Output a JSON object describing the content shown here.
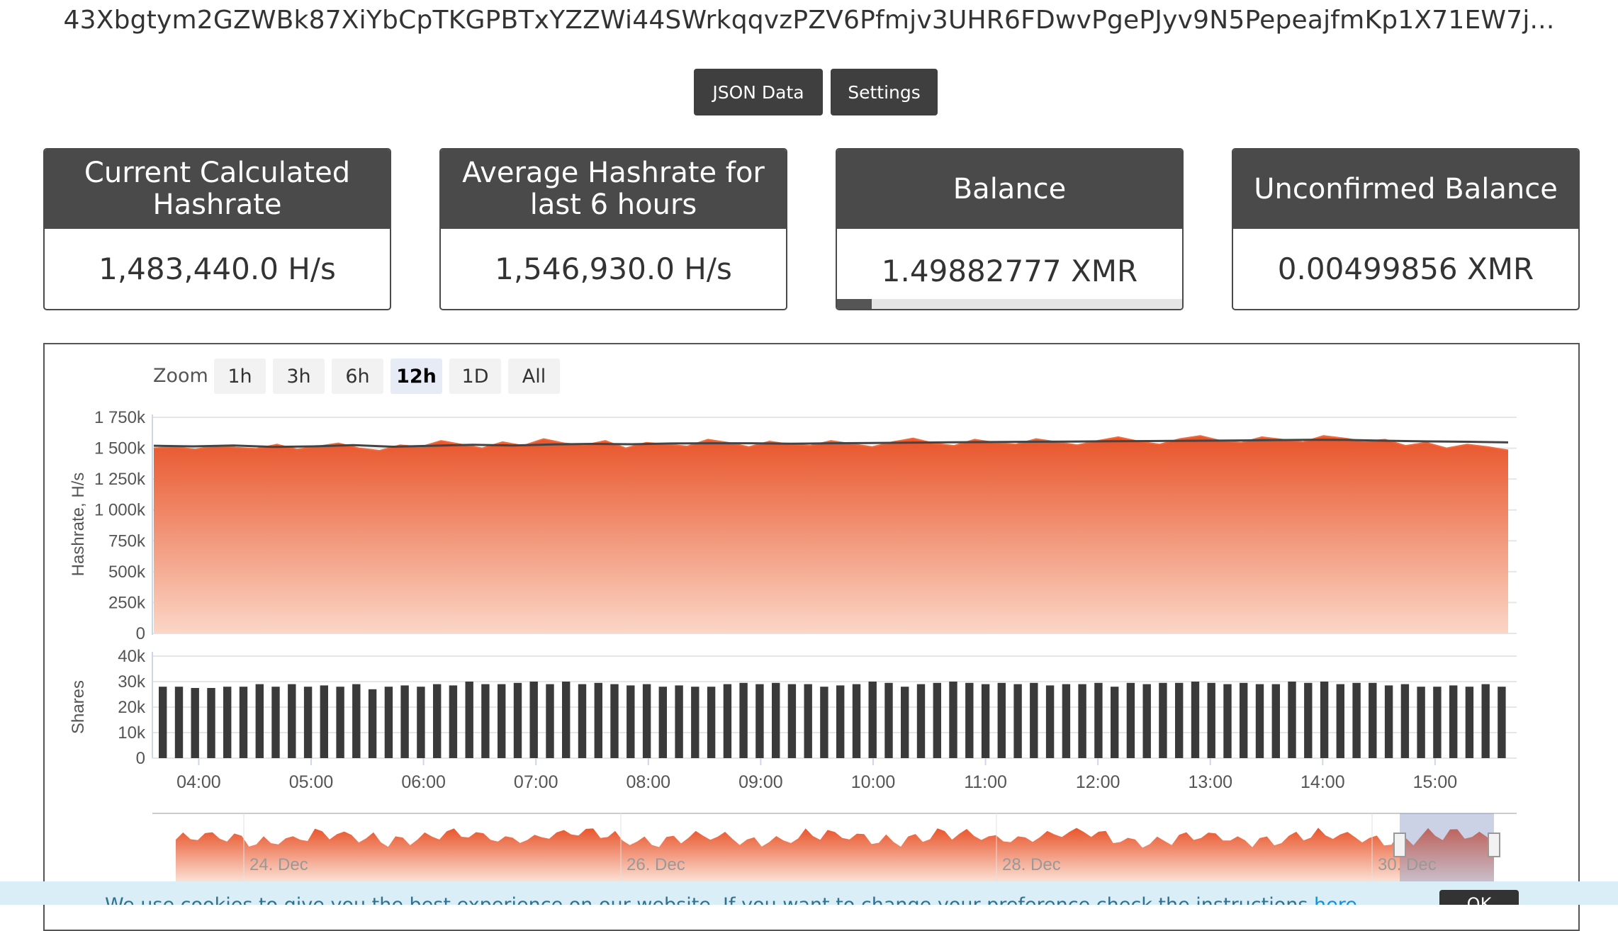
{
  "wallet_address": "43Xbgtym2GZWBk87XiYbCpTKGPBTxYZZWi44SWrkqqvzPZV6Pfmjv3UHR6FDwvPgePJyv9N5PepeajfmKp1X71EW7j...",
  "buttons": {
    "json": "JSON Data",
    "settings": "Settings"
  },
  "cards": [
    {
      "title": "Current Calculated Hashrate",
      "value": "1,483,440.0 H/s"
    },
    {
      "title": "Average Hashrate for last 6 hours",
      "value": "1,546,930.0 H/s"
    },
    {
      "title": "Balance",
      "value": "1.49882777 XMR",
      "progress": 0.1
    },
    {
      "title": "Unconfirmed Balance",
      "value": "0.00499856 XMR"
    }
  ],
  "zoom": {
    "label": "Zoom",
    "options": [
      "1h",
      "3h",
      "6h",
      "12h",
      "1D",
      "All"
    ],
    "active": "12h"
  },
  "colors": {
    "hashrate_fill": "#ea5a2a",
    "avg_line": "#444444",
    "bar": "#3a3a3a",
    "card_head": "#4a4a4a"
  },
  "chart_data": {
    "type": "area",
    "hashrate": {
      "ylabel": "Hashrate, H/s",
      "yticks": [
        "0",
        "250k",
        "500k",
        "750k",
        "1 000k",
        "1 250k",
        "1 500k",
        "1 750k"
      ],
      "ylim": [
        0,
        1750000
      ],
      "x_start_hour": 3.6,
      "x_end_hour": 15.65,
      "values": [
        1500000,
        1510000,
        1490000,
        1520000,
        1505000,
        1495000,
        1530000,
        1490000,
        1515000,
        1540000,
        1500000,
        1480000,
        1525000,
        1510000,
        1560000,
        1530000,
        1500000,
        1550000,
        1520000,
        1575000,
        1540000,
        1525000,
        1560000,
        1500000,
        1545000,
        1530000,
        1515000,
        1570000,
        1545000,
        1510000,
        1555000,
        1530000,
        1520000,
        1560000,
        1535000,
        1510000,
        1550000,
        1580000,
        1540000,
        1520000,
        1570000,
        1545000,
        1530000,
        1575000,
        1550000,
        1525000,
        1560000,
        1590000,
        1555000,
        1530000,
        1575000,
        1600000,
        1560000,
        1545000,
        1590000,
        1570000,
        1550000,
        1600000,
        1580000,
        1555000,
        1570000,
        1520000,
        1545000,
        1500000,
        1530000,
        1510000,
        1483440
      ],
      "average": [
        1520000,
        1515000,
        1522000,
        1510000,
        1515000,
        1525000,
        1512000,
        1520000,
        1528000,
        1522000,
        1530000,
        1535000,
        1532000,
        1538000,
        1540000,
        1540000,
        1536000,
        1540000,
        1542000,
        1545000,
        1548000,
        1550000,
        1552000,
        1553000,
        1556000,
        1558000,
        1560000,
        1562000,
        1565000,
        1568000,
        1567000,
        1560000,
        1555000,
        1552000,
        1546930
      ]
    },
    "shares": {
      "ylabel": "Shares",
      "yticks": [
        "0",
        "10k",
        "20k",
        "30k",
        "40k"
      ],
      "ylim": [
        0,
        40000
      ],
      "values": [
        28000,
        28000,
        27500,
        27500,
        28000,
        28000,
        29000,
        28000,
        29000,
        28000,
        28500,
        28000,
        29000,
        27000,
        28000,
        28500,
        28000,
        29000,
        28500,
        30000,
        29000,
        29000,
        29500,
        30000,
        29000,
        30000,
        29000,
        29500,
        29000,
        28500,
        29000,
        28000,
        28500,
        28000,
        28000,
        29000,
        29500,
        29000,
        29500,
        29000,
        29000,
        28000,
        28500,
        29000,
        30000,
        29500,
        28000,
        29000,
        29500,
        30000,
        29500,
        29000,
        29500,
        29000,
        29500,
        28500,
        29000,
        29000,
        29500,
        28000,
        29500,
        29000,
        29500,
        29500,
        30000,
        29500,
        29000,
        29500,
        29000,
        29000,
        30000,
        29500,
        30000,
        29000,
        29500,
        29500,
        28500,
        29000,
        28000,
        28000,
        28500,
        28000,
        29000,
        28000
      ],
      "xticks": [
        "04:00",
        "05:00",
        "06:00",
        "07:00",
        "08:00",
        "09:00",
        "10:00",
        "11:00",
        "12:00",
        "13:00",
        "14:00",
        "15:00"
      ]
    },
    "navigator": {
      "labels": [
        "24. Dec",
        "26. Dec",
        "28. Dec",
        "30. Dec"
      ]
    }
  },
  "cookie": {
    "text": "We use cookies to give you the best experience on our website. If you want to change your preference check the instructions ",
    "link": "here",
    "ok": "OK"
  }
}
